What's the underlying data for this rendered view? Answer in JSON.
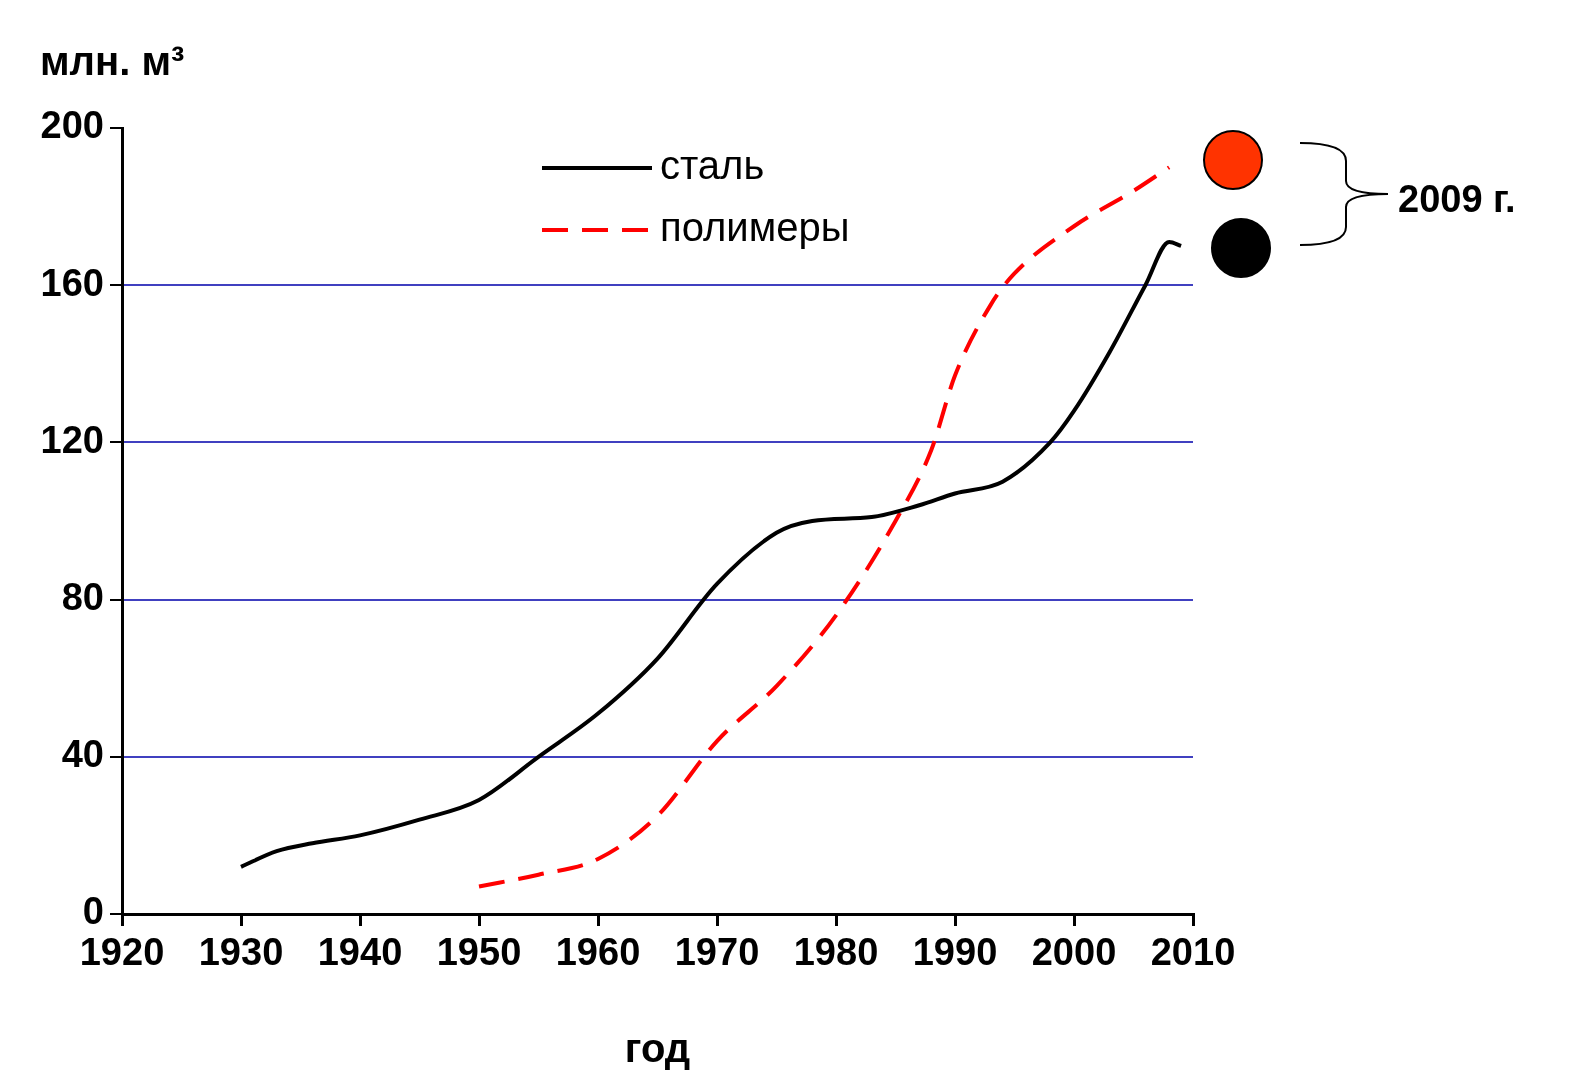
{
  "chart_data": {
    "type": "line",
    "xlabel": "год",
    "ylabel": "млн. м³",
    "xlim": [
      1920,
      2010
    ],
    "xticks": [
      1920,
      1930,
      1940,
      1950,
      1960,
      1970,
      1980,
      1990,
      2000,
      2010
    ],
    "ylim": [
      0,
      200
    ],
    "yticks": [
      0,
      40,
      80,
      120,
      160,
      200
    ],
    "grid": "y",
    "legend": "top",
    "marker": "none",
    "annotations": [
      "2009 г."
    ],
    "series": [
      {
        "name": "сталь",
        "color": "#000000",
        "line_style": "solid",
        "x": [
          1930,
          1933,
          1936,
          1940,
          1945,
          1950,
          1955,
          1960,
          1965,
          1970,
          1975,
          1978,
          1983,
          1987,
          1990,
          1994,
          1998,
          2000,
          2003,
          2006,
          2008,
          2009
        ],
        "values": [
          12,
          16,
          18,
          20,
          24,
          29,
          40,
          51,
          65,
          84,
          97,
          100,
          101,
          104,
          107,
          110,
          120,
          128,
          143,
          160,
          171,
          170
        ]
      },
      {
        "name": "полимеры",
        "color": "#ff0000",
        "line_style": "dashed",
        "x": [
          1950,
          1955,
          1960,
          1965,
          1970,
          1975,
          1980,
          1985,
          1988,
          1990,
          1993,
          1995,
          2000,
          2005,
          2008
        ],
        "values": [
          7,
          10,
          14,
          25,
          44,
          58,
          76,
          100,
          118,
          137,
          155,
          163,
          175,
          184,
          190
        ]
      }
    ]
  }
}
